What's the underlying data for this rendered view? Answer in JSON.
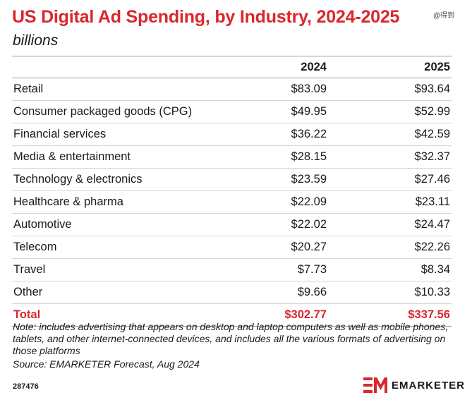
{
  "header": {
    "title": "US Digital Ad Spending, by Industry, 2024-2025",
    "subtitle": "billions",
    "watermark": "@得到"
  },
  "chart_data": {
    "type": "table",
    "title": "US Digital Ad Spending, by Industry, 2024-2025",
    "subtitle": "billions",
    "columns": [
      "",
      "2024",
      "2025"
    ],
    "rows": [
      {
        "label": "Retail",
        "v2024": "$83.09",
        "v2025": "$93.64"
      },
      {
        "label": "Consumer packaged goods (CPG)",
        "v2024": "$49.95",
        "v2025": "$52.99"
      },
      {
        "label": "Financial services",
        "v2024": "$36.22",
        "v2025": "$42.59"
      },
      {
        "label": "Media & entertainment",
        "v2024": "$28.15",
        "v2025": "$32.37"
      },
      {
        "label": "Technology & electronics",
        "v2024": "$23.59",
        "v2025": "$27.46"
      },
      {
        "label": "Healthcare & pharma",
        "v2024": "$22.09",
        "v2025": "$23.11"
      },
      {
        "label": "Automotive",
        "v2024": "$22.02",
        "v2025": "$24.47"
      },
      {
        "label": "Telecom",
        "v2024": "$20.27",
        "v2025": "$22.26"
      },
      {
        "label": "Travel",
        "v2024": "$7.73",
        "v2025": "$8.34"
      },
      {
        "label": "Other",
        "v2024": "$9.66",
        "v2025": "$10.33"
      }
    ],
    "total": {
      "label": "Total",
      "v2024": "$302.77",
      "v2025": "$337.56"
    }
  },
  "footer": {
    "note": "Note: includes advertising that appears on desktop and laptop computers as well as mobile phones, tablets, and other internet-connected devices, and includes all the various formats of advertising on those platforms",
    "source": "Source: EMARKETER Forecast, Aug 2024",
    "chart_id": "287476",
    "brand": "EMARKETER"
  },
  "colors": {
    "accent": "#d9272e",
    "text": "#1a1a1a",
    "rule": "#9a9a9a"
  }
}
